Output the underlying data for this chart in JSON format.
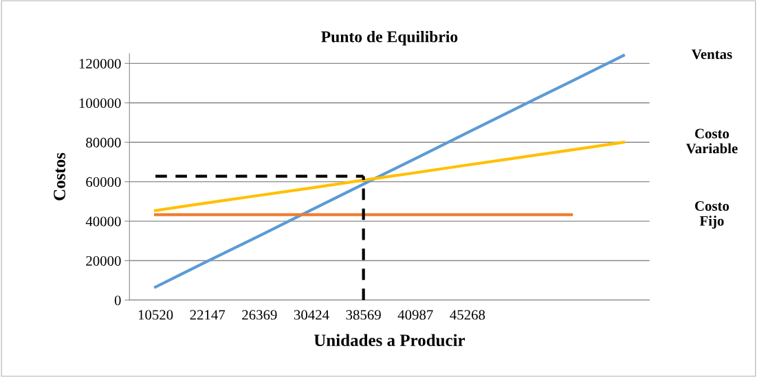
{
  "chart_data": {
    "type": "line",
    "title": "Punto de Equilibrio",
    "xlabel": "Unidades a Producir",
    "ylabel": "Costos",
    "categories": [
      "10520",
      "22147",
      "26369",
      "30424",
      "38569",
      "40987",
      "45268",
      null,
      null,
      null
    ],
    "series": [
      {
        "name": "Ventas",
        "color": "#5b9bd5",
        "values": [
          6600,
          19700,
          32600,
          45700,
          58800,
          71800,
          84900,
          98000,
          110900,
          124000
        ]
      },
      {
        "name": "Costo Variable",
        "color": "#ffc000",
        "values": [
          45400,
          49300,
          53100,
          56900,
          60800,
          64600,
          68500,
          72300,
          76100,
          80000
        ]
      },
      {
        "name": "Costo Fijo",
        "color": "#ed7d31",
        "values": [
          43300,
          43300,
          43300,
          43300,
          43300,
          43300,
          43300,
          43300,
          43300,
          null
        ]
      },
      {
        "color": "#000000",
        "line_style": "dashed",
        "values": [
          62800,
          62800,
          62800,
          62800,
          62800,
          null,
          null,
          null,
          null,
          null
        ]
      },
      {
        "color": "#000000",
        "line_style": "dashed",
        "x": [
          "38569",
          "38569"
        ],
        "values": [
          0,
          62800
        ]
      }
    ],
    "ylim": [
      0,
      125000
    ],
    "yticks": [
      0,
      20000,
      40000,
      60000,
      80000,
      100000,
      120000
    ],
    "grid": "y",
    "legend": false,
    "marker": "none",
    "line_style": "solid"
  }
}
